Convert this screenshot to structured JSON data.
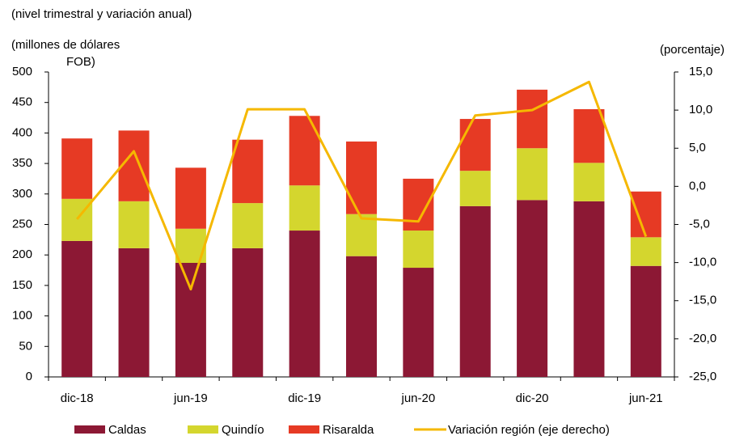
{
  "chart_data": {
    "type": "bar",
    "title": "(nivel trimestral y variación anual)",
    "ylabel": [
      "(millones  de dólares",
      "FOB)"
    ],
    "y2label": "(porcentaje)",
    "categories": [
      "dic-18",
      null,
      "jun-19",
      null,
      "dic-19",
      null,
      "jun-20",
      null,
      "dic-20",
      null,
      "jun-21"
    ],
    "stacked": true,
    "series": [
      {
        "name": "Caldas",
        "type": "bar",
        "color": "#8c1834",
        "values": [
          223,
          211,
          187,
          211,
          240,
          198,
          179,
          280,
          290,
          288,
          182
        ]
      },
      {
        "name": "Quindío",
        "type": "bar",
        "color": "#d4d62e",
        "values": [
          69,
          77,
          56,
          74,
          74,
          69,
          61,
          58,
          85,
          63,
          47
        ]
      },
      {
        "name": "Risaralda",
        "type": "bar",
        "color": "#e63a24",
        "values": [
          99,
          116,
          100,
          104,
          114,
          119,
          85,
          85,
          96,
          88,
          75
        ]
      },
      {
        "name": "Variación región (eje derecho)",
        "type": "line",
        "axis": "y2",
        "color": "#f5b800",
        "values": [
          -4.3,
          4.6,
          -13.5,
          10.1,
          10.1,
          -4.2,
          -4.6,
          9.3,
          10.0,
          13.7,
          -6.6
        ]
      }
    ],
    "ylim": [
      0,
      500
    ],
    "yticks": [
      0,
      50,
      100,
      150,
      200,
      250,
      300,
      350,
      400,
      450,
      500
    ],
    "y2lim": [
      -25,
      15
    ],
    "y2ticks": [
      {
        "value": -25,
        "label": "-25,0"
      },
      {
        "value": -20,
        "label": "-20,0"
      },
      {
        "value": -15,
        "label": "-15,0"
      },
      {
        "value": -10,
        "label": "-10,0"
      },
      {
        "value": -5,
        "label": "-5,0"
      },
      {
        "value": 0,
        "label": "0,0"
      },
      {
        "value": 5,
        "label": "5,0"
      },
      {
        "value": 10,
        "label": "10,0"
      },
      {
        "value": 15,
        "label": "15,0"
      }
    ],
    "grid": false
  }
}
